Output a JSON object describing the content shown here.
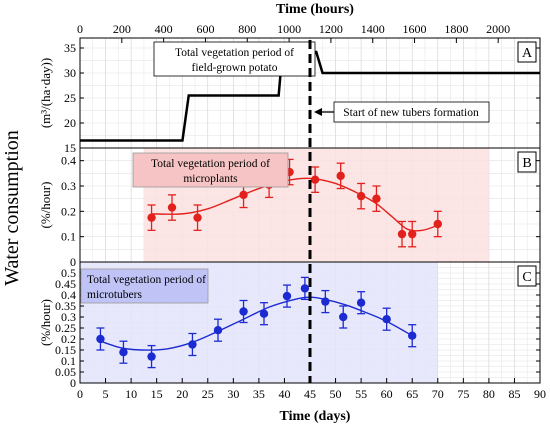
{
  "chart_data": {
    "type": "line",
    "overall_ylabel": "Water consumption",
    "top_axis": {
      "label": "Time (hours)",
      "range": [
        0,
        2200
      ],
      "ticks": [
        0,
        200,
        400,
        600,
        800,
        1000,
        1200,
        1400,
        1600,
        1800,
        2000
      ]
    },
    "bottom_axis": {
      "label": "Time (days)",
      "range": [
        0,
        90
      ],
      "ticks": [
        0,
        5,
        10,
        15,
        20,
        25,
        30,
        35,
        40,
        45,
        50,
        55,
        60,
        65,
        70,
        75,
        80,
        85,
        90
      ]
    },
    "marker_day": 45,
    "marker_annotation": "Start of new tubers formation",
    "panels": [
      {
        "id": "A",
        "ylabel": "(m³/(ha·day))",
        "ylim": [
          15,
          37
        ],
        "yticks": [
          15,
          20,
          25,
          30,
          35
        ],
        "period_label": "Total vegetation period of field-grown potato",
        "period_label_lines": [
          "Total vegetation period of",
          "field-grown potato"
        ],
        "series": [
          {
            "type": "step",
            "color": "#000000",
            "x_hours": [
              0,
              490,
              520,
              950,
              970,
              1080,
              1090,
              1130,
              1160,
              2200
            ],
            "y": [
              16.5,
              16.5,
              25.5,
              25.5,
              35,
              35,
              34.2,
              34.2,
              30,
              30
            ]
          }
        ]
      },
      {
        "id": "B",
        "ylabel": "(%/hour)",
        "ylim": [
          0,
          0.45
        ],
        "yticks": [
          0,
          0.1,
          0.2,
          0.3,
          0.4
        ],
        "period_label": "Total vegetation period of microplants",
        "period_label_lines": [
          "Total vegetation period of",
          "microplants"
        ],
        "period_days": [
          12.5,
          80
        ],
        "color": "#e3211c",
        "band_color": "#fbe1e1",
        "points": [
          {
            "x": 14,
            "y": 0.175,
            "err": 0.05
          },
          {
            "x": 18,
            "y": 0.215,
            "err": 0.05
          },
          {
            "x": 23,
            "y": 0.175,
            "err": 0.05
          },
          {
            "x": 32,
            "y": 0.265,
            "err": 0.05
          },
          {
            "x": 37,
            "y": 0.305,
            "err": 0.05
          },
          {
            "x": 41,
            "y": 0.355,
            "err": 0.05
          },
          {
            "x": 46,
            "y": 0.325,
            "err": 0.05
          },
          {
            "x": 51,
            "y": 0.34,
            "err": 0.05
          },
          {
            "x": 55,
            "y": 0.26,
            "err": 0.05
          },
          {
            "x": 58,
            "y": 0.25,
            "err": 0.05
          },
          {
            "x": 63,
            "y": 0.11,
            "err": 0.05
          },
          {
            "x": 65,
            "y": 0.11,
            "err": 0.05
          },
          {
            "x": 70,
            "y": 0.15,
            "err": 0.05
          }
        ],
        "fit": [
          [
            14,
            0.19
          ],
          [
            20,
            0.19
          ],
          [
            25,
            0.21
          ],
          [
            30,
            0.25
          ],
          [
            35,
            0.29
          ],
          [
            40,
            0.32
          ],
          [
            45,
            0.33
          ],
          [
            50,
            0.31
          ],
          [
            55,
            0.265
          ],
          [
            58,
            0.23
          ],
          [
            61,
            0.18
          ],
          [
            64,
            0.13
          ],
          [
            67,
            0.125
          ],
          [
            70,
            0.145
          ]
        ]
      },
      {
        "id": "C",
        "ylabel": "(%/hour)",
        "ylim": [
          0,
          0.55
        ],
        "yticks": [
          0,
          0.05,
          0.1,
          0.15,
          0.2,
          0.25,
          0.3,
          0.35,
          0.4,
          0.45,
          0.5
        ],
        "period_label": "Total vegetation period of microtubers",
        "period_label_lines": [
          "Total vegetation period of",
          "microtubers"
        ],
        "period_days": [
          0,
          70
        ],
        "color": "#1c2bd1",
        "band_color": "#e3e4fb",
        "points": [
          {
            "x": 4,
            "y": 0.2,
            "err": 0.05
          },
          {
            "x": 8.5,
            "y": 0.14,
            "err": 0.05
          },
          {
            "x": 14,
            "y": 0.12,
            "err": 0.05
          },
          {
            "x": 22,
            "y": 0.175,
            "err": 0.05
          },
          {
            "x": 27,
            "y": 0.24,
            "err": 0.05
          },
          {
            "x": 32,
            "y": 0.325,
            "err": 0.05
          },
          {
            "x": 36,
            "y": 0.315,
            "err": 0.05
          },
          {
            "x": 40.5,
            "y": 0.395,
            "err": 0.05
          },
          {
            "x": 44,
            "y": 0.43,
            "err": 0.05
          },
          {
            "x": 48,
            "y": 0.37,
            "err": 0.05
          },
          {
            "x": 51.5,
            "y": 0.3,
            "err": 0.05
          },
          {
            "x": 55,
            "y": 0.365,
            "err": 0.05
          },
          {
            "x": 60,
            "y": 0.29,
            "err": 0.05
          },
          {
            "x": 65,
            "y": 0.215,
            "err": 0.05
          }
        ],
        "fit": [
          [
            4,
            0.19
          ],
          [
            8,
            0.16
          ],
          [
            12,
            0.15
          ],
          [
            17,
            0.155
          ],
          [
            22,
            0.185
          ],
          [
            27,
            0.235
          ],
          [
            32,
            0.29
          ],
          [
            37,
            0.345
          ],
          [
            42,
            0.38
          ],
          [
            45,
            0.39
          ],
          [
            48,
            0.38
          ],
          [
            52,
            0.355
          ],
          [
            56,
            0.32
          ],
          [
            60,
            0.28
          ],
          [
            65,
            0.215
          ]
        ]
      }
    ],
    "grid": true
  }
}
